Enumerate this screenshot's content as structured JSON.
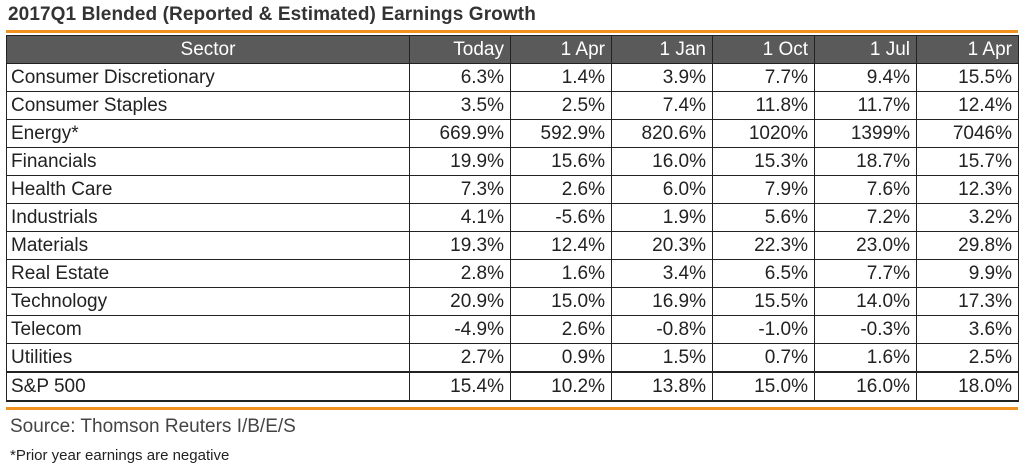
{
  "title": "2017Q1 Blended (Reported & Estimated) Earnings Growth",
  "accent_color": "#f0921f",
  "header_bg_color": "#5a5a5a",
  "source": "Source: Thomson Reuters I/B/E/S",
  "footnote": "*Prior year earnings are negative",
  "chart_data": {
    "type": "table",
    "title": "2017Q1 Blended (Reported & Estimated) Earnings Growth",
    "columns": [
      "Sector",
      "Today",
      "1 Apr",
      "1 Jan",
      "1 Oct",
      "1 Jul",
      "1 Apr"
    ],
    "rows": [
      {
        "label": "Consumer Discretionary",
        "cells": [
          "6.3%",
          "1.4%",
          "3.9%",
          "7.7%",
          "9.4%",
          "15.5%"
        ]
      },
      {
        "label": "Consumer Staples",
        "cells": [
          "3.5%",
          "2.5%",
          "7.4%",
          "11.8%",
          "11.7%",
          "12.4%"
        ]
      },
      {
        "label": "Energy*",
        "cells": [
          "669.9%",
          "592.9%",
          "820.6%",
          "1020%",
          "1399%",
          "7046%"
        ]
      },
      {
        "label": "Financials",
        "cells": [
          "19.9%",
          "15.6%",
          "16.0%",
          "15.3%",
          "18.7%",
          "15.7%"
        ]
      },
      {
        "label": "Health Care",
        "cells": [
          "7.3%",
          "2.6%",
          "6.0%",
          "7.9%",
          "7.6%",
          "12.3%"
        ]
      },
      {
        "label": "Industrials",
        "cells": [
          "4.1%",
          "-5.6%",
          "1.9%",
          "5.6%",
          "7.2%",
          "3.2%"
        ]
      },
      {
        "label": "Materials",
        "cells": [
          "19.3%",
          "12.4%",
          "20.3%",
          "22.3%",
          "23.0%",
          "29.8%"
        ]
      },
      {
        "label": "Real Estate",
        "cells": [
          "2.8%",
          "1.6%",
          "3.4%",
          "6.5%",
          "7.7%",
          "9.9%"
        ]
      },
      {
        "label": "Technology",
        "cells": [
          "20.9%",
          "15.0%",
          "16.9%",
          "15.5%",
          "14.0%",
          "17.3%"
        ]
      },
      {
        "label": "Telecom",
        "cells": [
          "-4.9%",
          "2.6%",
          "-0.8%",
          "-1.0%",
          "-0.3%",
          "3.6%"
        ]
      },
      {
        "label": "Utilities",
        "cells": [
          "2.7%",
          "0.9%",
          "1.5%",
          "0.7%",
          "1.6%",
          "2.5%"
        ]
      }
    ],
    "total": {
      "label": "S&P 500",
      "cells": [
        "15.4%",
        "10.2%",
        "13.8%",
        "15.0%",
        "16.0%",
        "18.0%"
      ]
    }
  }
}
